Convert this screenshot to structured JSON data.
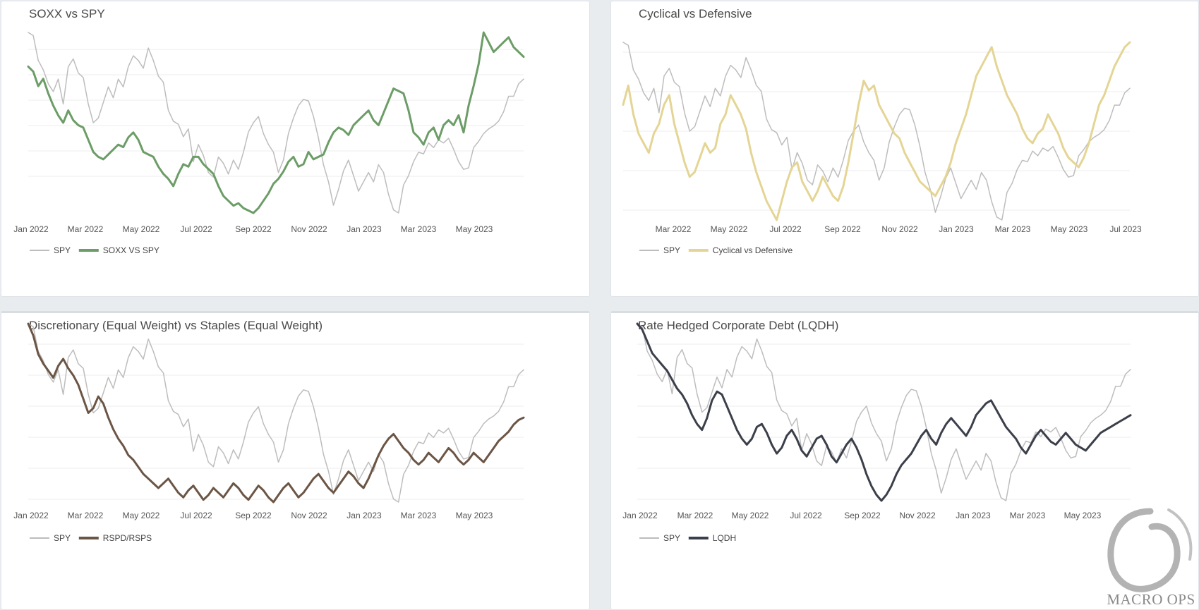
{
  "watermark": {
    "text": "MACRO OPS"
  },
  "chart_data": [
    {
      "type": "line",
      "title": "SOXX vs SPY",
      "x_tick_labels": [
        "Jan 2022",
        "Mar 2022",
        "May 2022",
        "Jul 2022",
        "Sep 2022",
        "Nov 2022",
        "Jan 2023",
        "Mar 2023",
        "May 2023"
      ],
      "x_range": [
        "Jan 2022",
        "Jun 2023"
      ],
      "grid": true,
      "legend": "bottom-left",
      "series": [
        {
          "name": "SPY",
          "color": "#bdbdbd",
          "values": [
            470,
            468,
            452,
            446,
            437,
            432,
            440,
            424,
            448,
            453,
            444,
            441,
            424,
            412,
            415,
            425,
            435,
            428,
            440,
            435,
            448,
            455,
            452,
            447,
            460,
            452,
            442,
            438,
            420,
            413,
            411,
            403,
            408,
            387,
            398,
            391,
            380,
            377,
            390,
            386,
            379,
            388,
            382,
            393,
            406,
            412,
            416,
            405,
            398,
            393,
            380,
            388,
            405,
            415,
            423,
            427,
            426,
            416,
            402,
            385,
            374,
            359,
            369,
            381,
            388,
            378,
            368,
            374,
            380,
            374,
            385,
            380,
            366,
            356,
            354,
            372,
            378,
            387,
            393,
            392,
            399,
            396,
            401,
            399,
            402,
            395,
            387,
            382,
            383,
            396,
            400,
            405,
            408,
            410,
            413,
            419,
            429,
            429,
            437,
            440
          ]
        },
        {
          "name": "SOXX VS SPY",
          "color": "#6c9d67",
          "values": [
            82,
            80,
            74,
            77,
            71,
            66,
            62,
            59,
            64,
            60,
            58,
            57,
            52,
            47,
            45,
            44,
            46,
            48,
            50,
            49,
            53,
            55,
            52,
            47,
            46,
            45,
            41,
            38,
            36,
            33,
            38,
            42,
            41,
            45,
            45,
            42,
            40,
            38,
            33,
            29,
            27,
            25,
            26,
            24,
            23,
            22,
            24,
            27,
            30,
            34,
            36,
            39,
            43,
            45,
            41,
            42,
            47,
            44,
            45,
            46,
            51,
            55,
            57,
            56,
            54,
            58,
            60,
            62,
            64,
            60,
            58,
            63,
            68,
            73,
            72,
            71,
            64,
            55,
            53,
            50,
            55,
            57,
            52,
            58,
            60,
            58,
            62,
            55,
            66,
            74,
            83,
            96,
            92,
            88,
            90,
            92,
            94,
            90,
            88,
            86
          ]
        }
      ]
    },
    {
      "type": "line",
      "title": "Cyclical vs Defensive",
      "x_tick_labels": [
        "Mar 2022",
        "May 2022",
        "Jul 2022",
        "Sep 2022",
        "Nov 2022",
        "Jan 2023",
        "Mar 2023",
        "May 2023",
        "Jul 2023"
      ],
      "x_range": [
        "Jan 2022",
        "Jul 2023"
      ],
      "grid": true,
      "legend": "bottom-left",
      "series": [
        {
          "name": "SPY",
          "color": "#bdbdbd",
          "values": [
            470,
            468,
            452,
            446,
            437,
            432,
            440,
            424,
            448,
            453,
            444,
            441,
            424,
            412,
            415,
            425,
            435,
            428,
            440,
            435,
            448,
            455,
            452,
            447,
            460,
            452,
            442,
            438,
            420,
            413,
            411,
            403,
            408,
            387,
            398,
            391,
            380,
            377,
            390,
            386,
            379,
            388,
            382,
            393,
            406,
            412,
            416,
            405,
            398,
            393,
            380,
            388,
            405,
            415,
            423,
            427,
            426,
            416,
            402,
            385,
            374,
            359,
            369,
            381,
            388,
            378,
            368,
            374,
            380,
            374,
            385,
            380,
            366,
            356,
            354,
            372,
            378,
            387,
            393,
            392,
            399,
            396,
            401,
            399,
            402,
            395,
            387,
            382,
            383,
            396,
            400,
            405,
            408,
            410,
            413,
            419,
            429,
            429,
            437,
            440
          ]
        },
        {
          "name": "Cyclical vs Defensive",
          "color": "#e4d595",
          "values": [
            1.1,
            1.14,
            1.08,
            1.04,
            1.02,
            1.0,
            1.04,
            1.06,
            1.1,
            1.12,
            1.06,
            1.02,
            0.98,
            0.95,
            0.96,
            0.99,
            1.02,
            1.0,
            1.01,
            1.06,
            1.08,
            1.12,
            1.1,
            1.08,
            1.05,
            1.0,
            0.96,
            0.93,
            0.9,
            0.88,
            0.86,
            0.9,
            0.94,
            0.97,
            0.98,
            0.94,
            0.92,
            0.9,
            0.92,
            0.95,
            0.93,
            0.91,
            0.9,
            0.93,
            0.98,
            1.04,
            1.1,
            1.15,
            1.13,
            1.14,
            1.1,
            1.08,
            1.06,
            1.04,
            1.03,
            1.0,
            0.98,
            0.96,
            0.94,
            0.93,
            0.92,
            0.91,
            0.93,
            0.95,
            0.98,
            1.02,
            1.05,
            1.08,
            1.12,
            1.16,
            1.18,
            1.2,
            1.22,
            1.18,
            1.15,
            1.12,
            1.1,
            1.08,
            1.05,
            1.03,
            1.02,
            1.04,
            1.05,
            1.08,
            1.06,
            1.04,
            1.01,
            0.99,
            0.98,
            0.97,
            0.99,
            1.02,
            1.06,
            1.1,
            1.12,
            1.15,
            1.18,
            1.2,
            1.22,
            1.23
          ]
        }
      ]
    },
    {
      "type": "line",
      "title": "Discretionary (Equal Weight) vs Staples (Equal Weight)",
      "x_tick_labels": [
        "Jan 2022",
        "Mar 2022",
        "May 2022",
        "Jul 2022",
        "Sep 2022",
        "Nov 2022",
        "Jan 2023",
        "Mar 2023",
        "May 2023"
      ],
      "x_range": [
        "Jan 2022",
        "Jun 2023"
      ],
      "grid": true,
      "legend": "bottom-left",
      "series": [
        {
          "name": "SPY",
          "color": "#bdbdbd",
          "values": [
            470,
            468,
            452,
            446,
            437,
            432,
            440,
            424,
            448,
            453,
            444,
            441,
            424,
            412,
            415,
            425,
            435,
            428,
            440,
            435,
            448,
            455,
            452,
            447,
            460,
            452,
            442,
            438,
            420,
            413,
            411,
            403,
            408,
            387,
            398,
            391,
            380,
            377,
            390,
            386,
            379,
            388,
            382,
            393,
            406,
            412,
            416,
            405,
            398,
            393,
            380,
            388,
            405,
            415,
            423,
            427,
            426,
            416,
            402,
            385,
            374,
            359,
            369,
            381,
            388,
            378,
            368,
            374,
            380,
            374,
            385,
            380,
            366,
            356,
            354,
            372,
            378,
            387,
            393,
            392,
            399,
            396,
            401,
            399,
            402,
            395,
            387,
            382,
            383,
            396,
            400,
            405,
            408,
            410,
            413,
            419,
            429,
            429,
            437,
            440
          ]
        },
        {
          "name": "RSPD/RSPS",
          "color": "#6b5545",
          "values": [
            2.1,
            2.05,
            1.97,
            1.93,
            1.9,
            1.87,
            1.92,
            1.95,
            1.91,
            1.88,
            1.84,
            1.78,
            1.72,
            1.74,
            1.79,
            1.76,
            1.7,
            1.65,
            1.61,
            1.58,
            1.54,
            1.52,
            1.49,
            1.46,
            1.44,
            1.42,
            1.4,
            1.42,
            1.44,
            1.41,
            1.38,
            1.36,
            1.39,
            1.41,
            1.38,
            1.35,
            1.37,
            1.4,
            1.38,
            1.36,
            1.39,
            1.42,
            1.4,
            1.37,
            1.35,
            1.38,
            1.41,
            1.39,
            1.36,
            1.34,
            1.37,
            1.4,
            1.42,
            1.39,
            1.36,
            1.38,
            1.41,
            1.44,
            1.46,
            1.43,
            1.4,
            1.38,
            1.41,
            1.44,
            1.47,
            1.45,
            1.42,
            1.4,
            1.44,
            1.49,
            1.54,
            1.58,
            1.61,
            1.63,
            1.6,
            1.57,
            1.55,
            1.52,
            1.5,
            1.52,
            1.55,
            1.53,
            1.51,
            1.54,
            1.57,
            1.55,
            1.52,
            1.5,
            1.52,
            1.55,
            1.53,
            1.51,
            1.54,
            1.57,
            1.6,
            1.62,
            1.64,
            1.67,
            1.69,
            1.7
          ]
        }
      ]
    },
    {
      "type": "line",
      "title": "Rate Hedged Corporate Debt (LQDH)",
      "x_tick_labels": [
        "Jan 2022",
        "Mar 2022",
        "May 2022",
        "Jul 2022",
        "Sep 2022",
        "Nov 2022",
        "Jan 2023",
        "Mar 2023",
        "May 2023"
      ],
      "x_range": [
        "Jan 2022",
        "Jun 2023"
      ],
      "grid": true,
      "legend": "bottom-left",
      "series": [
        {
          "name": "SPY",
          "color": "#bdbdbd",
          "values": [
            470,
            468,
            452,
            446,
            437,
            432,
            440,
            424,
            448,
            453,
            444,
            441,
            424,
            412,
            415,
            425,
            435,
            428,
            440,
            435,
            448,
            455,
            452,
            447,
            460,
            452,
            442,
            438,
            420,
            413,
            411,
            403,
            408,
            387,
            398,
            391,
            380,
            377,
            390,
            386,
            379,
            388,
            382,
            393,
            406,
            412,
            416,
            405,
            398,
            393,
            380,
            388,
            405,
            415,
            423,
            427,
            426,
            416,
            402,
            385,
            374,
            359,
            369,
            381,
            388,
            378,
            368,
            374,
            380,
            374,
            385,
            380,
            366,
            356,
            354,
            372,
            378,
            387,
            393,
            392,
            399,
            396,
            401,
            399,
            402,
            395,
            387,
            382,
            383,
            396,
            400,
            405,
            408,
            410,
            413,
            419,
            429,
            429,
            437,
            440
          ]
        },
        {
          "name": "LQDH",
          "color": "#3b3f4a",
          "values": [
            95.0,
            94.6,
            93.8,
            93.0,
            92.6,
            92.2,
            91.8,
            91.2,
            90.6,
            90.2,
            89.6,
            88.8,
            88.2,
            87.8,
            88.6,
            89.8,
            90.4,
            90.2,
            89.4,
            88.6,
            87.8,
            87.2,
            86.8,
            87.2,
            88.0,
            88.2,
            87.6,
            86.8,
            86.2,
            86.6,
            87.4,
            87.8,
            87.2,
            86.4,
            86.0,
            86.6,
            87.2,
            87.4,
            86.8,
            86.0,
            85.6,
            86.2,
            86.8,
            87.2,
            86.6,
            85.8,
            84.8,
            84.0,
            83.4,
            83.0,
            83.4,
            84.0,
            84.8,
            85.4,
            85.8,
            86.2,
            86.8,
            87.4,
            87.8,
            87.2,
            86.8,
            87.6,
            88.2,
            88.6,
            88.2,
            87.8,
            87.4,
            88.0,
            88.8,
            89.2,
            89.6,
            89.8,
            89.2,
            88.6,
            88.0,
            87.6,
            87.2,
            86.6,
            86.2,
            86.8,
            87.4,
            87.8,
            87.4,
            87.0,
            86.8,
            87.2,
            87.6,
            87.2,
            86.8,
            86.6,
            86.4,
            86.8,
            87.2,
            87.6,
            87.8,
            88.0,
            88.2,
            88.4,
            88.6,
            88.8
          ]
        }
      ]
    }
  ]
}
